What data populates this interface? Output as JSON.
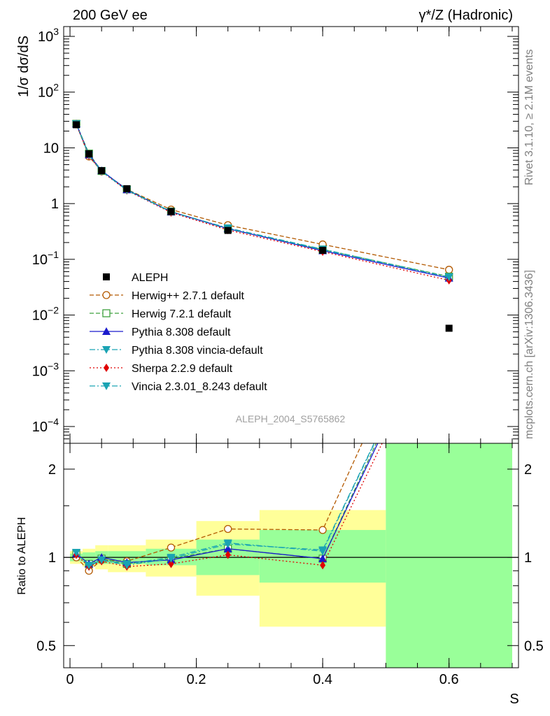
{
  "header": {
    "left": "200 GeV ee",
    "right": "γ*/Z (Hadronic)"
  },
  "side_labels": {
    "rivet": "Rivet 3.1.10, ≥ 2.1M events",
    "mcplots": "mcplots.cern.ch [arXiv:1306.3436]"
  },
  "analysis_id": "ALEPH_2004_S5765862",
  "colors": {
    "yellow_band": "#ffff99",
    "green_band": "#99ff99"
  },
  "chart_data": [
    {
      "type": "line",
      "title": "",
      "ylabel": "1/σ dσ/dS",
      "yscale": "log",
      "xlim": [
        -0.01,
        0.71
      ],
      "ylim": [
        5e-05,
        1500
      ],
      "yticks": [
        {
          "v": 0.0001,
          "base": "10",
          "exp": "−4"
        },
        {
          "v": 0.001,
          "base": "10",
          "exp": "−3"
        },
        {
          "v": 0.01,
          "base": "10",
          "exp": "−2"
        },
        {
          "v": 0.1,
          "base": "10",
          "exp": "−1"
        },
        {
          "v": 1,
          "base": "1",
          "exp": ""
        },
        {
          "v": 10,
          "base": "10",
          "exp": ""
        },
        {
          "v": 100,
          "base": "10",
          "exp": "2"
        },
        {
          "v": 1000,
          "base": "10",
          "exp": "3"
        }
      ],
      "x": [
        0.01,
        0.03,
        0.05,
        0.09,
        0.16,
        0.25,
        0.4,
        0.6
      ],
      "data": {
        "name": "ALEPH",
        "values": [
          26.0,
          7.8,
          3.9,
          1.85,
          0.72,
          0.33,
          0.145,
          0.0058
        ]
      },
      "series": [
        {
          "name": "Herwig++ 2.7.1 default",
          "color": "#b35900",
          "dash": "6,3",
          "marker": "circle-open",
          "values": [
            26.5,
            7.0,
            3.8,
            1.8,
            0.78,
            0.41,
            0.185,
            0.065
          ]
        },
        {
          "name": "Herwig 7.2.1 default",
          "color": "#3fa03f",
          "dash": "6,3",
          "marker": "square-open",
          "values": [
            27.0,
            7.9,
            3.85,
            1.8,
            0.72,
            0.35,
            0.15,
            0.049
          ]
        },
        {
          "name": "Pythia 8.308 default",
          "color": "#1a1acc",
          "dash": "",
          "marker": "triangle-up",
          "values": [
            27.0,
            7.5,
            3.9,
            1.78,
            0.71,
            0.355,
            0.143,
            0.046
          ]
        },
        {
          "name": "Pythia 8.308 vincia-default",
          "color": "#1aa3b3",
          "dash": "8,3,2,3",
          "marker": "triangle-down",
          "values": [
            27.0,
            7.3,
            3.82,
            1.75,
            0.72,
            0.36,
            0.148,
            0.048
          ]
        },
        {
          "name": "Sherpa 2.2.9 default",
          "color": "#e00000",
          "dash": "2,3",
          "marker": "diamond",
          "values": [
            26.5,
            7.2,
            3.75,
            1.72,
            0.69,
            0.335,
            0.137,
            0.042
          ]
        },
        {
          "name": "Vincia 2.3.01_8.243 default",
          "color": "#1aa3b3",
          "dash": "8,3,2,3",
          "marker": "triangle-down",
          "values": [
            26.8,
            7.4,
            3.8,
            1.74,
            0.71,
            0.365,
            0.152,
            0.048
          ]
        }
      ]
    },
    {
      "type": "line",
      "title": "",
      "xlabel": "S",
      "ylabel": "Ratio to ALEPH",
      "yscale": "log",
      "xlim": [
        -0.01,
        0.71
      ],
      "ylim": [
        0.42,
        2.45
      ],
      "xticks": [
        0,
        0.2,
        0.4,
        0.6
      ],
      "xtick_labels": [
        "0",
        "0.2",
        "0.4",
        "0.6"
      ],
      "yticks": [
        0.5,
        1,
        2
      ],
      "ytick_labels": [
        "0.5",
        "1",
        "2"
      ],
      "bins": [
        {
          "lo": 0.0,
          "hi": 0.02,
          "green": [
            0.97,
            1.03
          ],
          "yellow": [
            0.95,
            1.05
          ]
        },
        {
          "lo": 0.02,
          "hi": 0.04,
          "green": [
            0.96,
            1.04
          ],
          "yellow": [
            0.93,
            1.07
          ]
        },
        {
          "lo": 0.04,
          "hi": 0.06,
          "green": [
            0.95,
            1.05
          ],
          "yellow": [
            0.91,
            1.1
          ]
        },
        {
          "lo": 0.06,
          "hi": 0.12,
          "green": [
            0.95,
            1.05
          ],
          "yellow": [
            0.89,
            1.1
          ]
        },
        {
          "lo": 0.12,
          "hi": 0.2,
          "green": [
            0.94,
            1.07
          ],
          "yellow": [
            0.86,
            1.15
          ]
        },
        {
          "lo": 0.2,
          "hi": 0.3,
          "green": [
            0.87,
            1.15
          ],
          "yellow": [
            0.74,
            1.33
          ]
        },
        {
          "lo": 0.3,
          "hi": 0.5,
          "green": [
            0.82,
            1.24
          ],
          "yellow": [
            0.58,
            1.45
          ]
        },
        {
          "lo": 0.5,
          "hi": 0.7,
          "green": [
            0.42,
            2.45
          ],
          "yellow": [
            0.42,
            2.45
          ]
        }
      ],
      "series": [
        {
          "name": "Herwig++ 2.7.1 default",
          "values": [
            1.0,
            0.9,
            0.98,
            0.97,
            1.08,
            1.25,
            1.24,
            11.0
          ]
        },
        {
          "name": "Herwig 7.2.1 default",
          "values": [
            1.03,
            0.95,
            0.99,
            0.95,
            0.99,
            1.07,
            0.99,
            8.4
          ]
        },
        {
          "name": "Pythia 8.308 default",
          "values": [
            1.03,
            0.95,
            1.0,
            0.96,
            0.98,
            1.07,
            0.99,
            7.9
          ]
        },
        {
          "name": "Pythia 8.308 vincia-default",
          "values": [
            1.04,
            0.93,
            0.98,
            0.95,
            1.0,
            1.12,
            1.05,
            8.3
          ]
        },
        {
          "name": "Sherpa 2.2.9 default",
          "values": [
            1.02,
            0.93,
            0.97,
            0.93,
            0.95,
            1.02,
            0.94,
            7.2
          ]
        },
        {
          "name": "Vincia 2.3.01_8.243 default",
          "values": [
            1.04,
            0.94,
            0.98,
            0.94,
            0.99,
            1.11,
            1.06,
            8.3
          ]
        }
      ]
    }
  ]
}
